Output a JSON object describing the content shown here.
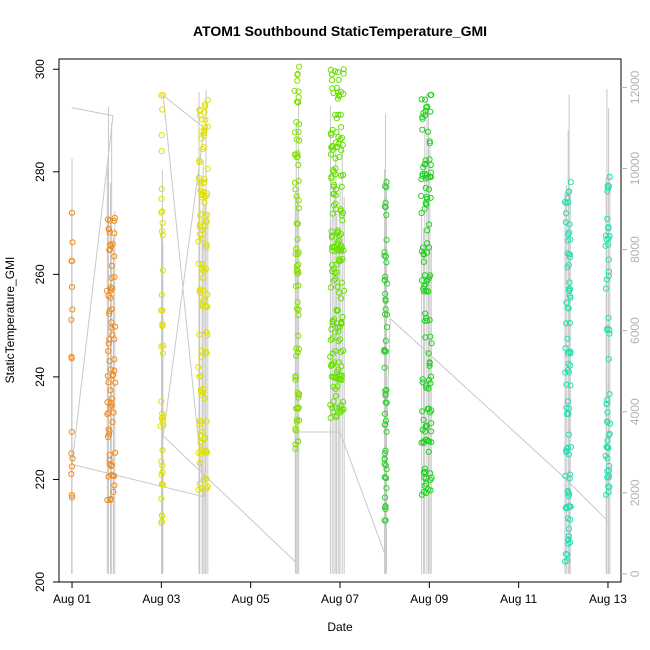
{
  "chart_data": {
    "type": "scatter",
    "title": "ATOM1 Southbound StaticTemperature_GMI",
    "xlabel": "Date",
    "ylabel": "StaticTemperature_GMI",
    "xlim": [
      "2016-07-31T17:00",
      "2016-08-13T07:00"
    ],
    "ylim": [
      200,
      302
    ],
    "y2lim": [
      -200,
      12700
    ],
    "grid": false,
    "x_ticks": [
      {
        "date": "2016-08-01",
        "label": "Aug 01"
      },
      {
        "date": "2016-08-03",
        "label": "Aug 03"
      },
      {
        "date": "2016-08-05",
        "label": "Aug 05"
      },
      {
        "date": "2016-08-07",
        "label": "Aug 07"
      },
      {
        "date": "2016-08-09",
        "label": "Aug 09"
      },
      {
        "date": "2016-08-11",
        "label": "Aug 11"
      },
      {
        "date": "2016-08-13",
        "label": "Aug 13"
      }
    ],
    "y_ticks": [
      200,
      220,
      240,
      260,
      280,
      300
    ],
    "y2_ticks": [
      0,
      2000,
      4000,
      6000,
      8000,
      10000,
      12000
    ],
    "series": [
      {
        "kind": "temperature",
        "marker": "open-circle",
        "colors": [
          "#ff8c00",
          "#ffff00",
          "#80ff00",
          "#00ff40",
          "#00ffc0"
        ],
        "segments": [
          {
            "color": "#f28a1a",
            "x": [
              "2016-08-01T00:00",
              "2016-08-01T00:00"
            ],
            "y": [
              216.5,
              272
            ],
            "n": 14
          },
          {
            "color": "#f28a1a",
            "x": [
              "2016-08-01T19:00",
              "2016-08-01T23:00"
            ],
            "y": [
              216,
              271
            ],
            "n": 70
          },
          {
            "color": "#e0e000",
            "x": [
              "2016-08-03T00:00",
              "2016-08-03T01:00"
            ],
            "y": [
              211.5,
              295
            ],
            "n": 40
          },
          {
            "color": "#e0e000",
            "x": [
              "2016-08-03T20:00",
              "2016-08-04T01:00"
            ],
            "y": [
              218,
              294
            ],
            "n": 110
          },
          {
            "color": "#84e000",
            "x": [
              "2016-08-06T00:00",
              "2016-08-06T02:00"
            ],
            "y": [
              226,
              300.5
            ],
            "n": 70
          },
          {
            "color": "#66e000",
            "x": [
              "2016-08-06T19:00",
              "2016-08-07T02:00"
            ],
            "y": [
              232,
              300
            ],
            "n": 170
          },
          {
            "color": "#2ed12e",
            "x": [
              "2016-08-08T00:00",
              "2016-08-08T01:00"
            ],
            "y": [
              212,
              278
            ],
            "n": 55
          },
          {
            "color": "#1fd11f",
            "x": [
              "2016-08-08T20:00",
              "2016-08-09T01:00"
            ],
            "y": [
              217,
              295
            ],
            "n": 120
          },
          {
            "color": "#22e0b0",
            "x": [
              "2016-08-12T01:00",
              "2016-08-12T04:00"
            ],
            "y": [
              204,
              278
            ],
            "n": 80
          },
          {
            "color": "#22e0b0",
            "x": [
              "2016-08-12T23:00",
              "2016-08-13T01:00"
            ],
            "y": [
              217,
              279
            ],
            "n": 50
          }
        ]
      },
      {
        "kind": "altitude-right-axis",
        "marker": "line",
        "color": "#c8c8c8",
        "points": [
          {
            "x": "2016-08-01T00:00",
            "y2": 11500
          },
          {
            "x": "2016-08-01T22:00",
            "y2": 11300
          },
          {
            "x": "2016-08-01T00:00",
            "y2": 2700
          },
          {
            "x": "2016-08-03T23:00",
            "y2": 1900
          },
          {
            "x": "2016-08-03T01:00",
            "y2": 11800
          },
          {
            "x": "2016-08-03T23:00",
            "y2": 11000
          },
          {
            "x": "2016-08-03T01:00",
            "y2": 3400
          },
          {
            "x": "2016-08-06T00:00",
            "y2": 300
          },
          {
            "x": "2016-08-06T00:00",
            "y2": 1300
          },
          {
            "x": "2016-08-06T00:00",
            "y2": 3500
          },
          {
            "x": "2016-08-07T00:00",
            "y2": 3500
          },
          {
            "x": "2016-08-08T00:00",
            "y2": 500
          },
          {
            "x": "2016-08-08T00:00",
            "y2": 2000
          },
          {
            "x": "2016-08-08T03:00",
            "y2": 6300
          },
          {
            "x": "2016-08-12T00:00",
            "y2": 2400
          },
          {
            "x": "2016-08-13T00:00",
            "y2": 1300
          }
        ]
      }
    ]
  }
}
